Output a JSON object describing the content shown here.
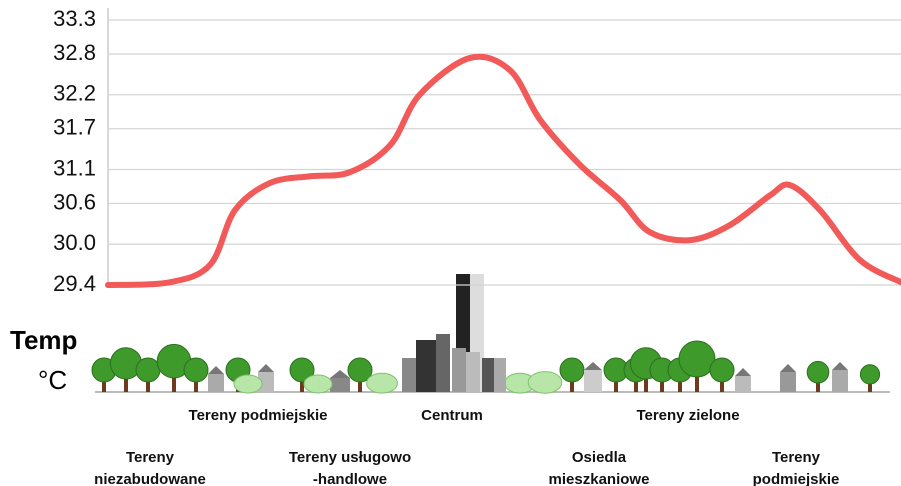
{
  "chart_data": {
    "type": "line",
    "y_label": [
      "Temp",
      "°C"
    ],
    "x": [
      0,
      7.8,
      12.9,
      16.0,
      20.4,
      25.5,
      30.5,
      35.6,
      39.3,
      45.6,
      50.7,
      54.5,
      59.5,
      64.6,
      68.3,
      73.4,
      78.4,
      83.5,
      86.0,
      89.8,
      94.8,
      100
    ],
    "series": [
      {
        "color": "#f25a5a",
        "values": [
          29.4,
          29.44,
          29.7,
          30.5,
          30.9,
          31.0,
          31.06,
          31.46,
          32.2,
          32.74,
          32.56,
          31.83,
          31.17,
          30.65,
          30.18,
          30.06,
          30.28,
          30.72,
          30.87,
          30.5,
          29.77,
          29.44
        ]
      }
    ],
    "xlim": [
      0,
      100
    ],
    "ylim": [
      29.4,
      33.3
    ],
    "yticks": [
      33.3,
      32.8,
      32.2,
      31.7,
      31.1,
      30.6,
      {
        "value": 30.0,
        "label": "30.0"
      },
      29.4
    ],
    "grid": true,
    "zones": [
      {
        "row": 1,
        "lines": [
          "Tereny podmiejskie"
        ]
      },
      {
        "row": 1,
        "lines": [
          "Centrum"
        ]
      },
      {
        "row": 1,
        "lines": [
          "Tereny zielone"
        ]
      },
      {
        "row": 2,
        "lines": [
          "Tereny",
          "niezabudowane"
        ]
      },
      {
        "row": 2,
        "lines": [
          "Tereny usługowo",
          "-handlowe"
        ]
      },
      {
        "row": 2,
        "lines": [
          "Osiedla",
          "mieszkaniowe"
        ]
      },
      {
        "row": 2,
        "lines": [
          "Tereny",
          "podmiejskie"
        ]
      }
    ]
  }
}
